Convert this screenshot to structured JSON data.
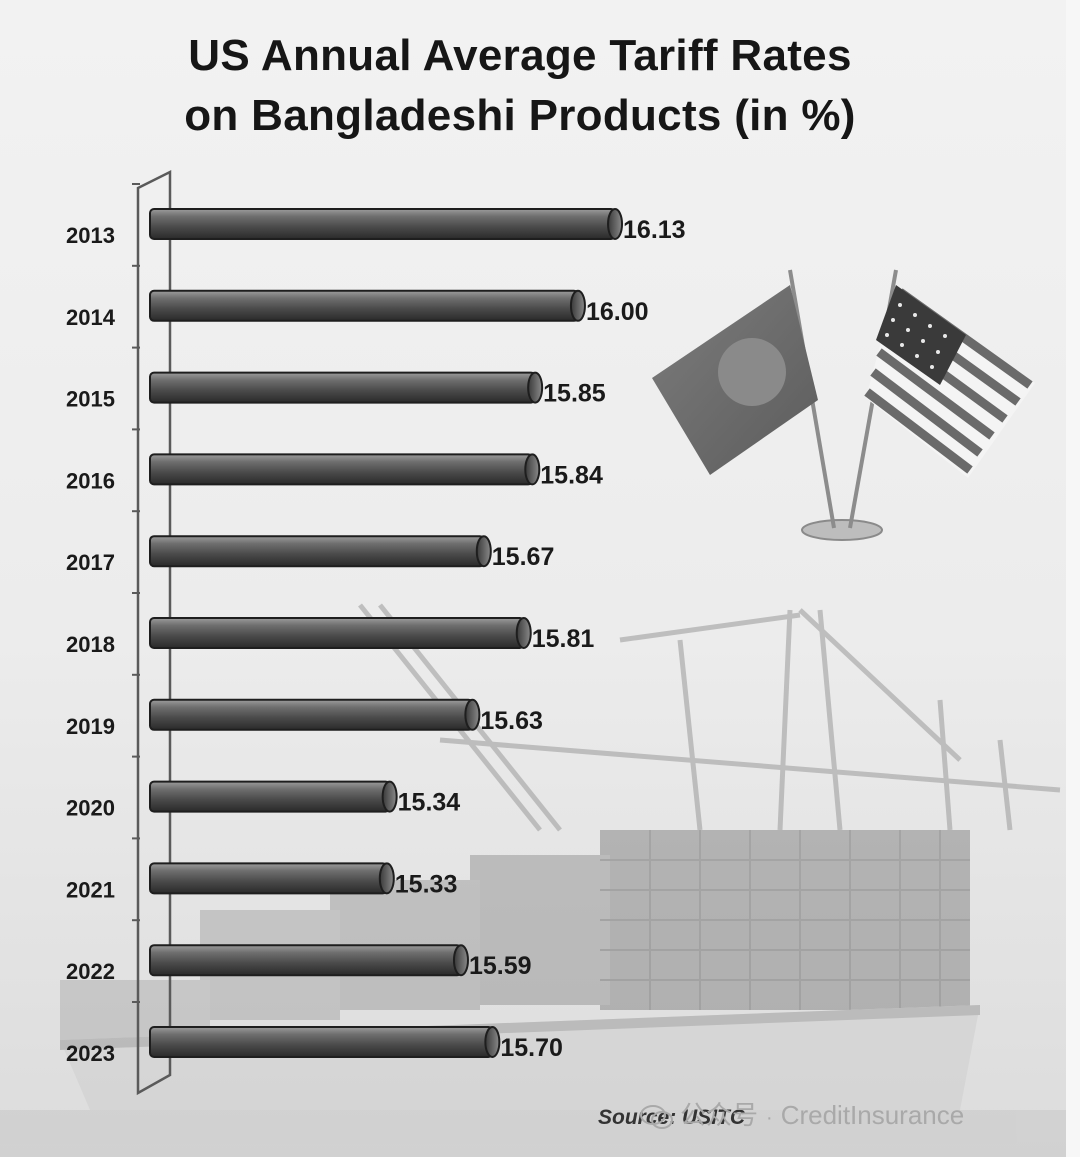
{
  "chart_data": {
    "type": "bar",
    "orientation": "horizontal",
    "title": "US Annual Average Tariff Rates on Bangladeshi Products (in %)",
    "title_lines": [
      "US Annual Average Tariff Rates",
      "on Bangladeshi Products (in %)"
    ],
    "categories": [
      "2013",
      "2014",
      "2015",
      "2016",
      "2017",
      "2018",
      "2019",
      "2020",
      "2021",
      "2022",
      "2023"
    ],
    "values": [
      16.13,
      16.0,
      15.85,
      15.84,
      15.67,
      15.81,
      15.63,
      15.34,
      15.33,
      15.59,
      15.7
    ],
    "value_labels": [
      "16.13",
      "16.00",
      "15.85",
      "15.84",
      "15.67",
      "15.81",
      "15.63",
      "15.34",
      "15.33",
      "15.59",
      "15.70"
    ],
    "xlim": [
      14.5,
      16.2
    ],
    "grid": false,
    "legend": "none",
    "bar_color": "#5a5a5a"
  },
  "source": "Source: USITC",
  "watermark": {
    "cn_label": "公众号",
    "separator": "·",
    "name": "CreditInsurance"
  },
  "decorations": {
    "left_flag": "bangladesh-flag-icon",
    "right_flag": "usa-flag-icon",
    "background": "container-ship-illustration"
  }
}
